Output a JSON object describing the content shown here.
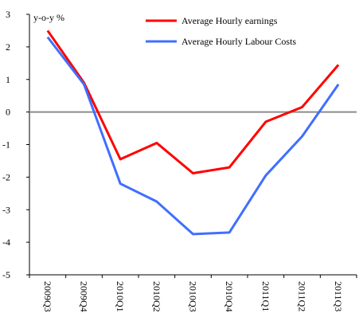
{
  "chart_data": {
    "type": "line",
    "y_label": "y-o-y %",
    "categories": [
      "2009Q3",
      "2009Q4",
      "2010Q1",
      "2010Q2",
      "2010Q3",
      "2010Q4",
      "2011Q1",
      "2011Q2",
      "2011Q3"
    ],
    "series": [
      {
        "name": "Average Hourly earnings",
        "color": "#ff0000",
        "values": [
          2.5,
          0.9,
          -1.45,
          -0.95,
          -1.88,
          -1.7,
          -0.3,
          0.15,
          1.45
        ]
      },
      {
        "name": "Average Hourly Labour Costs",
        "color": "#3f6fff",
        "values": [
          2.3,
          0.85,
          -2.2,
          -2.75,
          -3.75,
          -3.7,
          -1.95,
          -0.75,
          0.85
        ]
      }
    ],
    "ylim": [
      -5,
      3
    ],
    "yticks": [
      -5,
      -4,
      -3,
      -2,
      -1,
      0,
      1,
      2,
      3
    ],
    "legend": "top"
  }
}
